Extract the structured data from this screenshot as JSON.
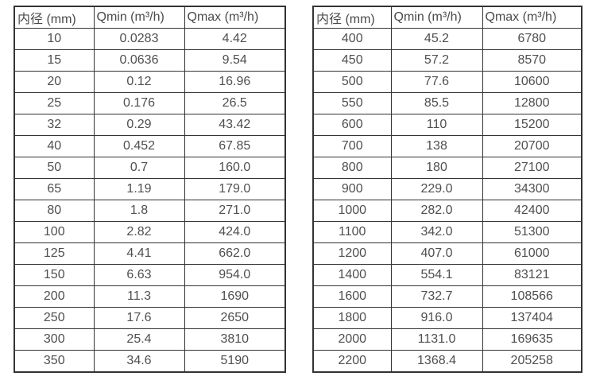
{
  "page": {
    "background_color": "#ffffff",
    "border_color": "#333333",
    "text_color": "#4f4f4f"
  },
  "tables": [
    {
      "name": "flow-table-small-diameters",
      "headers": [
        "内径 (mm)",
        "Qmin (m³/h)",
        "Qmax (m³/h)"
      ],
      "rows": [
        [
          "10",
          "0.0283",
          "4.42"
        ],
        [
          "15",
          "0.0636",
          "9.54"
        ],
        [
          "20",
          "0.12",
          "16.96"
        ],
        [
          "25",
          "0.176",
          "26.5"
        ],
        [
          "32",
          "0.29",
          "43.42"
        ],
        [
          "40",
          "0.452",
          "67.85"
        ],
        [
          "50",
          "0.7",
          "160.0"
        ],
        [
          "65",
          "1.19",
          "179.0"
        ],
        [
          "80",
          "1.8",
          "271.0"
        ],
        [
          "100",
          "2.82",
          "424.0"
        ],
        [
          "125",
          "4.41",
          "662.0"
        ],
        [
          "150",
          "6.63",
          "954.0"
        ],
        [
          "200",
          "11.3",
          "1690"
        ],
        [
          "250",
          "17.6",
          "2650"
        ],
        [
          "300",
          "25.4",
          "3810"
        ],
        [
          "350",
          "34.6",
          "5190"
        ]
      ]
    },
    {
      "name": "flow-table-large-diameters",
      "headers": [
        "内径 (mm)",
        "Qmin (m³/h)",
        "Qmax (m³/h)"
      ],
      "rows": [
        [
          "400",
          "45.2",
          "6780"
        ],
        [
          "450",
          "57.2",
          "8570"
        ],
        [
          "500",
          "77.6",
          "10600"
        ],
        [
          "550",
          "85.5",
          "12800"
        ],
        [
          "600",
          "110",
          "15200"
        ],
        [
          "700",
          "138",
          "20700"
        ],
        [
          "800",
          "180",
          "27100"
        ],
        [
          "900",
          "229.0",
          "34300"
        ],
        [
          "1000",
          "282.0",
          "42400"
        ],
        [
          "1100",
          "342.0",
          "51300"
        ],
        [
          "1200",
          "407.0",
          "61000"
        ],
        [
          "1400",
          "554.1",
          "83121"
        ],
        [
          "1600",
          "732.7",
          "108566"
        ],
        [
          "1800",
          "916.0",
          "137404"
        ],
        [
          "2000",
          "1131.0",
          "169635"
        ],
        [
          "2200",
          "1368.4",
          "205258"
        ]
      ]
    }
  ]
}
